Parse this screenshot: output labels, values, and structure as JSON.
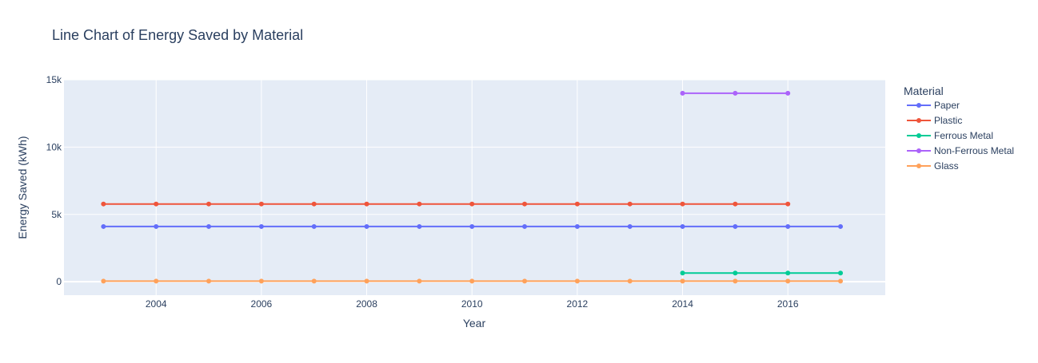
{
  "chart_data": {
    "type": "line",
    "title": "Line Chart of Energy Saved by Material",
    "xlabel": "Year",
    "ylabel": "Energy Saved (kWh)",
    "xlim": [
      2002.25,
      2017.85
    ],
    "ylim": [
      -1000,
      15000
    ],
    "x_ticks": [
      2004,
      2006,
      2008,
      2010,
      2012,
      2014,
      2016
    ],
    "x_tick_labels": [
      "2004",
      "2006",
      "2008",
      "2010",
      "2012",
      "2014",
      "2016"
    ],
    "y_ticks": [
      0,
      5000,
      10000,
      15000
    ],
    "y_tick_labels": [
      "0",
      "5k",
      "10k",
      "15k"
    ],
    "grid": true,
    "legend_title": "Material",
    "legend_position": "right",
    "series": [
      {
        "name": "Paper",
        "color": "#636efa",
        "x": [
          2003,
          2004,
          2005,
          2006,
          2007,
          2008,
          2009,
          2010,
          2011,
          2012,
          2013,
          2014,
          2015,
          2016,
          2017
        ],
        "values": [
          4100,
          4100,
          4100,
          4100,
          4100,
          4100,
          4100,
          4100,
          4100,
          4100,
          4100,
          4100,
          4100,
          4100,
          4100
        ]
      },
      {
        "name": "Plastic",
        "color": "#ef553b",
        "x": [
          2003,
          2004,
          2005,
          2006,
          2007,
          2008,
          2009,
          2010,
          2011,
          2012,
          2013,
          2014,
          2015,
          2016
        ],
        "values": [
          5774,
          5774,
          5774,
          5774,
          5774,
          5774,
          5774,
          5774,
          5774,
          5774,
          5774,
          5774,
          5774,
          5774
        ]
      },
      {
        "name": "Ferrous Metal",
        "color": "#00cc96",
        "x": [
          2014,
          2015,
          2016,
          2017
        ],
        "values": [
          642,
          642,
          642,
          642
        ]
      },
      {
        "name": "Non-Ferrous Metal",
        "color": "#ab63fa",
        "x": [
          2014,
          2015,
          2016
        ],
        "values": [
          14000,
          14000,
          14000
        ]
      },
      {
        "name": "Glass",
        "color": "#ffa15a",
        "x": [
          2003,
          2004,
          2005,
          2006,
          2007,
          2008,
          2009,
          2010,
          2011,
          2012,
          2013,
          2014,
          2015,
          2016,
          2017
        ],
        "values": [
          42,
          42,
          42,
          42,
          42,
          42,
          42,
          42,
          42,
          42,
          42,
          42,
          42,
          42,
          42
        ]
      }
    ]
  },
  "colors": {
    "plot_background": "#e5ecf6",
    "grid": "#ffffff",
    "text": "#2a3f5f"
  }
}
